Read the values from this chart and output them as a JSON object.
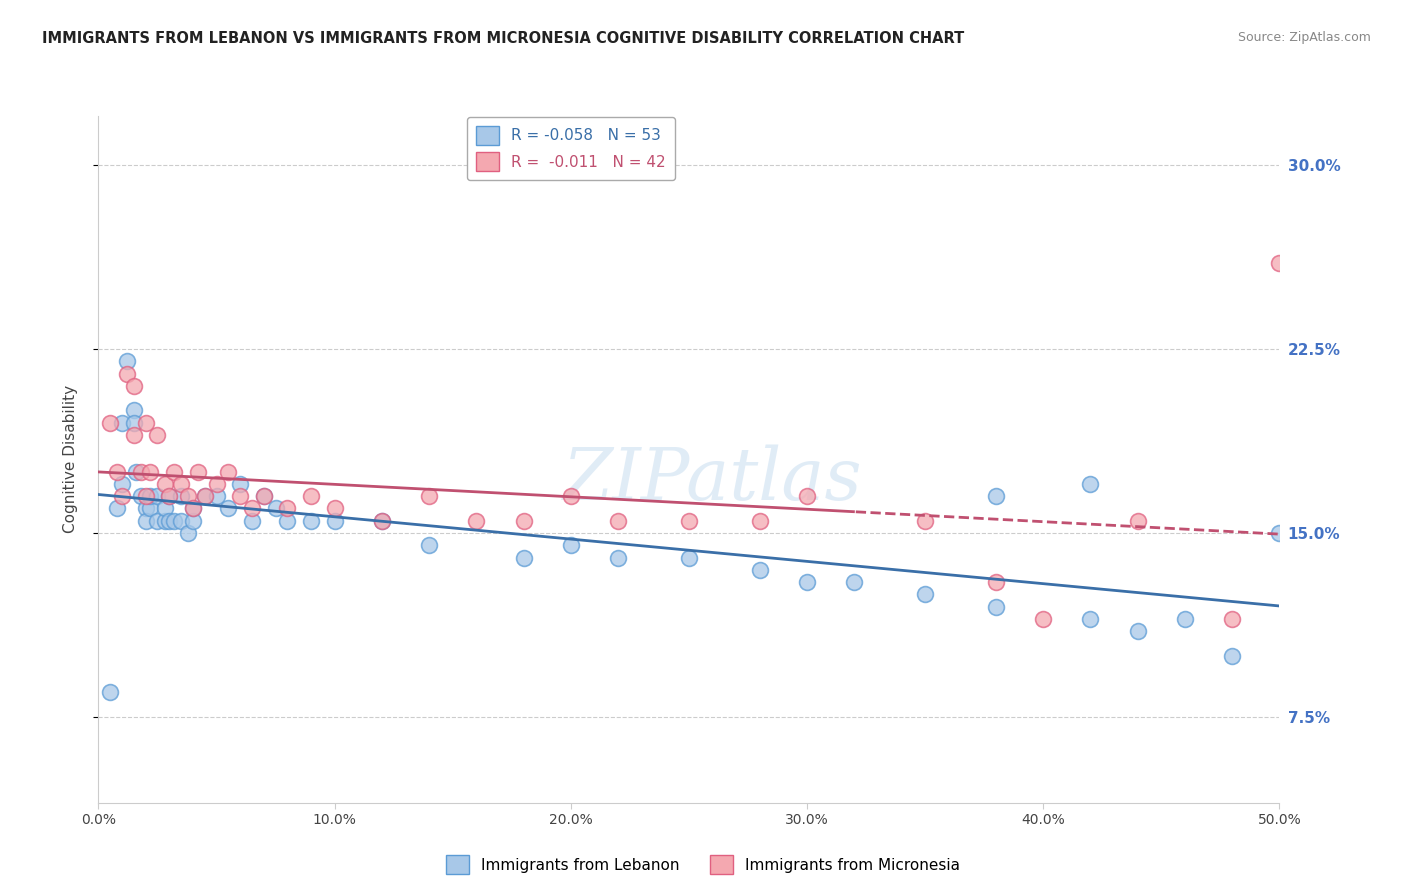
{
  "title": "IMMIGRANTS FROM LEBANON VS IMMIGRANTS FROM MICRONESIA COGNITIVE DISABILITY CORRELATION CHART",
  "source": "Source: ZipAtlas.com",
  "ylabel": "Cognitive Disability",
  "legend_label1": "Immigrants from Lebanon",
  "legend_label2": "Immigrants from Micronesia",
  "R1": -0.058,
  "N1": 53,
  "R2": -0.011,
  "N2": 42,
  "xlim": [
    0.0,
    0.5
  ],
  "ylim": [
    0.04,
    0.32
  ],
  "xticks": [
    0.0,
    0.1,
    0.2,
    0.3,
    0.4,
    0.5
  ],
  "yticks_right": [
    0.075,
    0.15,
    0.225,
    0.3
  ],
  "ytick_labels_right": [
    "7.5%",
    "15.0%",
    "22.5%",
    "30.0%"
  ],
  "xtick_labels": [
    "0.0%",
    "10.0%",
    "20.0%",
    "30.0%",
    "40.0%",
    "50.0%"
  ],
  "color1": "#a8c8e8",
  "color2": "#f4a8b0",
  "edge_color1": "#5b9bd5",
  "edge_color2": "#e06080",
  "line_color1": "#3a6fa8",
  "line_color2": "#c05070",
  "line_color2_dash": "#c05070",
  "background_color": "#ffffff",
  "watermark": "ZIPatlas",
  "scatter1_x": [
    0.005,
    0.008,
    0.01,
    0.01,
    0.012,
    0.015,
    0.015,
    0.016,
    0.018,
    0.02,
    0.02,
    0.022,
    0.022,
    0.025,
    0.025,
    0.028,
    0.028,
    0.03,
    0.03,
    0.032,
    0.035,
    0.035,
    0.038,
    0.04,
    0.04,
    0.045,
    0.05,
    0.055,
    0.06,
    0.065,
    0.07,
    0.075,
    0.08,
    0.09,
    0.1,
    0.12,
    0.14,
    0.18,
    0.2,
    0.22,
    0.25,
    0.28,
    0.3,
    0.32,
    0.35,
    0.38,
    0.42,
    0.44,
    0.46,
    0.48,
    0.5,
    0.42,
    0.38
  ],
  "scatter1_y": [
    0.085,
    0.16,
    0.195,
    0.17,
    0.22,
    0.2,
    0.195,
    0.175,
    0.165,
    0.16,
    0.155,
    0.16,
    0.165,
    0.155,
    0.165,
    0.155,
    0.16,
    0.155,
    0.165,
    0.155,
    0.155,
    0.165,
    0.15,
    0.155,
    0.16,
    0.165,
    0.165,
    0.16,
    0.17,
    0.155,
    0.165,
    0.16,
    0.155,
    0.155,
    0.155,
    0.155,
    0.145,
    0.14,
    0.145,
    0.14,
    0.14,
    0.135,
    0.13,
    0.13,
    0.125,
    0.12,
    0.115,
    0.11,
    0.115,
    0.1,
    0.15,
    0.17,
    0.165
  ],
  "scatter2_x": [
    0.005,
    0.008,
    0.01,
    0.012,
    0.015,
    0.015,
    0.018,
    0.02,
    0.02,
    0.022,
    0.025,
    0.028,
    0.03,
    0.032,
    0.035,
    0.038,
    0.04,
    0.042,
    0.045,
    0.05,
    0.055,
    0.06,
    0.065,
    0.07,
    0.08,
    0.09,
    0.1,
    0.12,
    0.14,
    0.16,
    0.18,
    0.2,
    0.22,
    0.25,
    0.28,
    0.3,
    0.35,
    0.38,
    0.4,
    0.44,
    0.48,
    0.5
  ],
  "scatter2_y": [
    0.195,
    0.175,
    0.165,
    0.215,
    0.21,
    0.19,
    0.175,
    0.165,
    0.195,
    0.175,
    0.19,
    0.17,
    0.165,
    0.175,
    0.17,
    0.165,
    0.16,
    0.175,
    0.165,
    0.17,
    0.175,
    0.165,
    0.16,
    0.165,
    0.16,
    0.165,
    0.16,
    0.155,
    0.165,
    0.155,
    0.155,
    0.165,
    0.155,
    0.155,
    0.155,
    0.165,
    0.155,
    0.13,
    0.115,
    0.155,
    0.115,
    0.26
  ]
}
